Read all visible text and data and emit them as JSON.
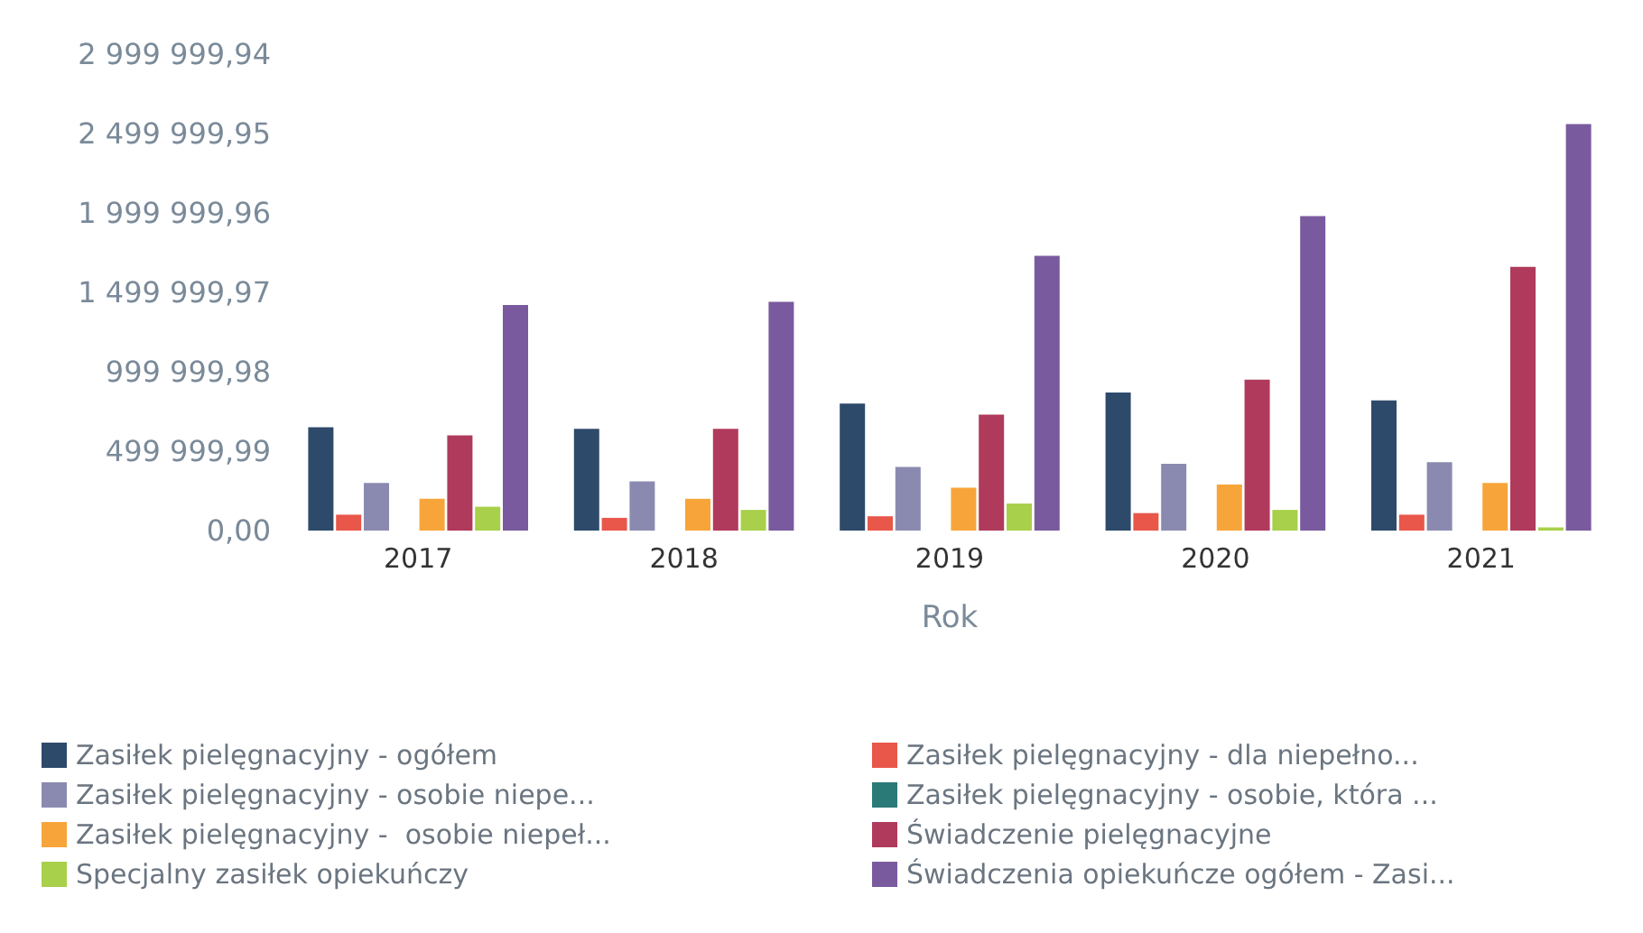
{
  "chart_data": {
    "type": "bar",
    "xlabel": "Rok",
    "categories": [
      "2017",
      "2018",
      "2019",
      "2020",
      "2021"
    ],
    "series": [
      {
        "name": "Zasiłek pielęgnacyjny - ogółem",
        "color": "#2e4a6b",
        "values": [
          650000,
          640000,
          800000,
          870000,
          820000
        ]
      },
      {
        "name": "Zasiłek pielęgnacyjny - dla niepełno...",
        "color": "#e8574a",
        "values": [
          100000,
          80000,
          90000,
          110000,
          100000
        ]
      },
      {
        "name": "Zasiłek pielęgnacyjny - osobie niepe...",
        "color": "#8a8ab0",
        "values": [
          300000,
          310000,
          400000,
          420000,
          430000
        ]
      },
      {
        "name": "Zasiłek pielęgnacyjny - osobie, która ...",
        "color": "#2a7a78",
        "values": [
          0,
          0,
          0,
          0,
          0
        ]
      },
      {
        "name": "Zasiłek pielęgnacyjny -  osobie niepeł...",
        "color": "#f7a53a",
        "values": [
          200000,
          200000,
          270000,
          290000,
          300000
        ]
      },
      {
        "name": "Świadczenie pielęgnacyjne",
        "color": "#b03a5b",
        "values": [
          600000,
          640000,
          730000,
          950000,
          1660000
        ]
      },
      {
        "name": "Specjalny zasiłek opiekuńczy",
        "color": "#a8d04a",
        "values": [
          150000,
          130000,
          170000,
          130000,
          20000
        ]
      },
      {
        "name": "Świadczenia opiekuńcze ogółem - Zasi...",
        "color": "#7a5a9e",
        "values": [
          1420000,
          1440000,
          1730000,
          1980000,
          2560000
        ]
      }
    ],
    "ylim": [
      0,
      2999999.94
    ],
    "yticks": [
      {
        "value": 0,
        "label": "0,00"
      },
      {
        "value": 499999.99,
        "label": "499 999,99"
      },
      {
        "value": 999999.98,
        "label": "999 999,98"
      },
      {
        "value": 1499999.97,
        "label": "1 499 999,97"
      },
      {
        "value": 1999999.96,
        "label": "1 999 999,96"
      },
      {
        "value": 2499999.95,
        "label": "2 499 999,95"
      },
      {
        "value": 2999999.94,
        "label": "2 999 999,94"
      }
    ],
    "grid": false,
    "legend": "bottom"
  }
}
